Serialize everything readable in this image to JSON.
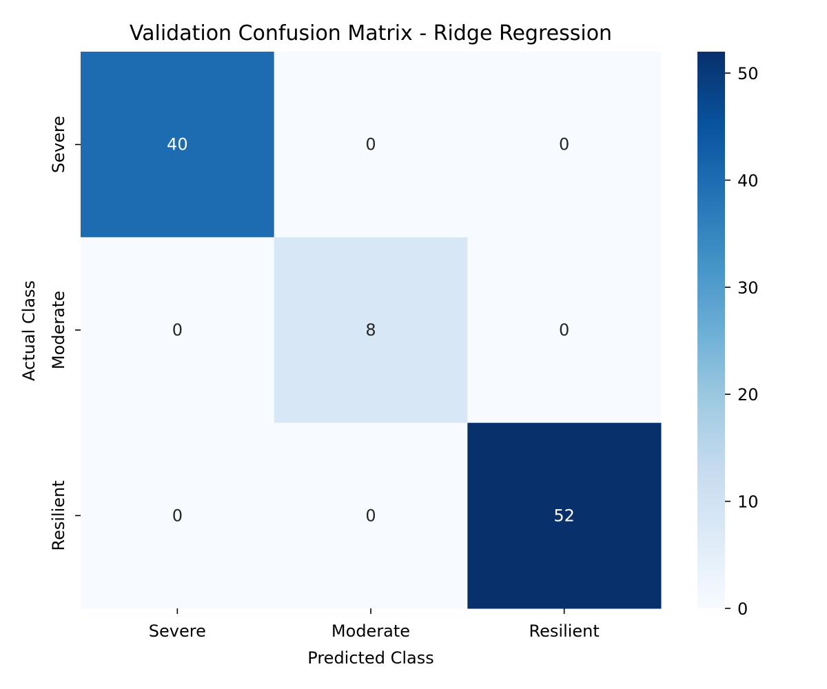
{
  "chart_data": {
    "type": "heatmap",
    "title": "Validation Confusion Matrix - Ridge Regression",
    "xlabel": "Predicted Class",
    "ylabel": "Actual Class",
    "x_categories": [
      "Severe",
      "Moderate",
      "Resilient"
    ],
    "y_categories": [
      "Severe",
      "Moderate",
      "Resilient"
    ],
    "matrix": [
      [
        40,
        0,
        0
      ],
      [
        0,
        8,
        0
      ],
      [
        0,
        0,
        52
      ]
    ],
    "colorbar": {
      "range": [
        0,
        52
      ],
      "ticks": [
        0,
        10,
        20,
        30,
        40,
        50
      ],
      "colormap": "Blues",
      "low_color": "#f7fbff",
      "high_color": "#08306b"
    },
    "annotation_colors": {
      "light_cells": "#262626",
      "dark_cells": "#ffffff"
    }
  }
}
